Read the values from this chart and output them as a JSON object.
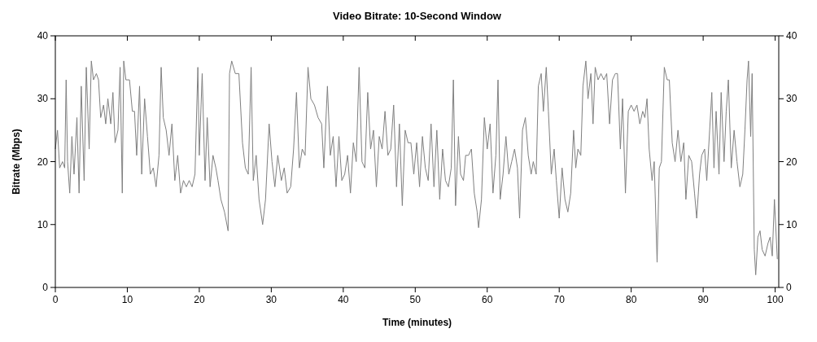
{
  "chart_data": {
    "type": "line",
    "title": "Video Bitrate: 10-Second Window",
    "xlabel": "Time (minutes)",
    "ylabel": "Bitrate (Mbps)",
    "xlim": [
      0,
      100.5
    ],
    "xticks": [
      0,
      10,
      20,
      30,
      40,
      50,
      60,
      70,
      80,
      90,
      100
    ],
    "ylim": [
      0,
      40
    ],
    "yticks": [
      0,
      10,
      20,
      30,
      40
    ],
    "y2lim": [
      0,
      40
    ],
    "y2ticks": [
      0,
      10,
      20,
      30,
      40
    ],
    "grid": false,
    "series": [
      {
        "color": "#7f7f7f",
        "x": [
          0,
          0.3,
          0.6,
          1,
          1.3,
          1.5,
          1.7,
          2,
          2.3,
          2.6,
          3,
          3.3,
          3.6,
          4,
          4.3,
          4.7,
          5,
          5.3,
          5.7,
          6,
          6.3,
          6.7,
          7,
          7.3,
          7.7,
          8,
          8.3,
          8.7,
          9,
          9.3,
          9.5,
          9.8,
          10.3,
          10.7,
          11,
          11.3,
          11.7,
          12,
          12.4,
          12.8,
          13.2,
          13.6,
          14,
          14.4,
          14.7,
          15,
          15.4,
          15.8,
          16.2,
          16.6,
          17,
          17.4,
          17.8,
          18.2,
          18.6,
          19,
          19.4,
          19.8,
          20,
          20.4,
          20.8,
          21.1,
          21.5,
          21.9,
          22.3,
          22.6,
          23,
          23.5,
          24,
          24.2,
          24.5,
          25,
          25.5,
          26,
          26.4,
          26.8,
          27.2,
          27.5,
          27.9,
          28.3,
          28.8,
          29.2,
          29.7,
          30.1,
          30.5,
          30.9,
          31.4,
          31.8,
          32.2,
          32.7,
          33.1,
          33.5,
          33.9,
          34.3,
          34.7,
          35.1,
          35.5,
          36,
          36.5,
          37,
          37.3,
          37.8,
          38.2,
          38.6,
          39,
          39.4,
          39.8,
          40.2,
          40.6,
          41,
          41.4,
          41.8,
          42.2,
          42.6,
          43,
          43.4,
          43.8,
          44.2,
          44.6,
          45,
          45.4,
          45.8,
          46.2,
          46.6,
          47,
          47.4,
          47.8,
          48.2,
          48.6,
          49,
          49.4,
          49.8,
          50.2,
          50.6,
          51,
          51.4,
          51.8,
          52.2,
          52.6,
          53,
          53.4,
          53.8,
          54.2,
          54.6,
          55,
          55.3,
          55.6,
          56,
          56.3,
          56.7,
          57,
          57.4,
          57.8,
          58.2,
          58.6,
          58.8,
          59.2,
          59.6,
          60,
          60.4,
          60.8,
          61.2,
          61.5,
          61.8,
          62.2,
          62.6,
          63,
          63.4,
          63.8,
          64.2,
          64.5,
          64.9,
          65.3,
          65.7,
          66.1,
          66.4,
          66.8,
          67.1,
          67.5,
          67.8,
          68.2,
          68.5,
          68.9,
          69.3,
          69.6,
          70,
          70.4,
          70.8,
          71.2,
          71.6,
          72,
          72.3,
          72.6,
          73,
          73.3,
          73.7,
          74,
          74.4,
          74.7,
          75,
          75.4,
          75.8,
          76.2,
          76.6,
          77,
          77.4,
          77.8,
          78.1,
          78.5,
          78.8,
          79.2,
          79.6,
          80,
          80.4,
          80.8,
          81.2,
          81.6,
          81.9,
          82.2,
          82.5,
          82.9,
          83.2,
          83.6,
          83.9,
          84.2,
          84.6,
          85,
          85.3,
          85.7,
          86.1,
          86.5,
          86.9,
          87.3,
          87.6,
          88,
          88.4,
          88.8,
          89.1,
          89.5,
          89.8,
          90.2,
          90.5,
          90.9,
          91.2,
          91.5,
          91.8,
          92.2,
          92.5,
          92.9,
          93.2,
          93.5,
          93.9,
          94.3,
          94.7,
          95.1,
          95.5,
          95.8,
          96.1,
          96.3,
          96.6,
          96.8,
          97.1,
          97.3,
          97.6,
          97.9,
          98.2,
          98.6,
          99,
          99.3,
          99.6,
          99.9,
          100.3
        ],
        "values": [
          22,
          25,
          19,
          20,
          19,
          33,
          20,
          15,
          24,
          18,
          27,
          15,
          32,
          17,
          35,
          22,
          36,
          33,
          34,
          33,
          27,
          29,
          26,
          30,
          26,
          31,
          23,
          25,
          35,
          15,
          36,
          33,
          33,
          28,
          28,
          21,
          32,
          18,
          30,
          24,
          18,
          19,
          16,
          21,
          35,
          27,
          25,
          21,
          26,
          17,
          21,
          15,
          17,
          16,
          17,
          16,
          18,
          35,
          21,
          34,
          17,
          27,
          16,
          21,
          19,
          17,
          14,
          12,
          9,
          34,
          36,
          34,
          34,
          23,
          19,
          18,
          35,
          17,
          21,
          14,
          10,
          14,
          26,
          20,
          16,
          21,
          17,
          19,
          15,
          16,
          22,
          31,
          19,
          22,
          21,
          35,
          30,
          29,
          27,
          26,
          19,
          32,
          21,
          24,
          16,
          24,
          17,
          18,
          21,
          15,
          23,
          20,
          35,
          20,
          19,
          31,
          22,
          25,
          16,
          24,
          22,
          28,
          21,
          22,
          29,
          16,
          26,
          13,
          25,
          23,
          23,
          18,
          23,
          16,
          24,
          19,
          17,
          26,
          16,
          25,
          14,
          22,
          17,
          16,
          19,
          33,
          13,
          24,
          18,
          17,
          21,
          21,
          22,
          15,
          12,
          9.5,
          14,
          27,
          22,
          26,
          15,
          21,
          33,
          14,
          18,
          24,
          18,
          20,
          22,
          19,
          11,
          25,
          27,
          21,
          18,
          20,
          18,
          32,
          34,
          28,
          35,
          28,
          18,
          22,
          17,
          11,
          19,
          14,
          12,
          15,
          25,
          19,
          22,
          21,
          32,
          36,
          30,
          34,
          26,
          35,
          33,
          34,
          33,
          34,
          26,
          33,
          34,
          34,
          22,
          30,
          15,
          28,
          29,
          28,
          29,
          26,
          28,
          27,
          30,
          22,
          17,
          20,
          4,
          19,
          20,
          35,
          33,
          33,
          23,
          20,
          25,
          20,
          23,
          14,
          21,
          20,
          15,
          11,
          18,
          21,
          22,
          17,
          25,
          31,
          19,
          28,
          18,
          31,
          20,
          28,
          33,
          19,
          25,
          20,
          16,
          18,
          25,
          33,
          36,
          24,
          34,
          6,
          2,
          8,
          9,
          6,
          5,
          7,
          8,
          5,
          14,
          4.5
        ]
      }
    ]
  }
}
